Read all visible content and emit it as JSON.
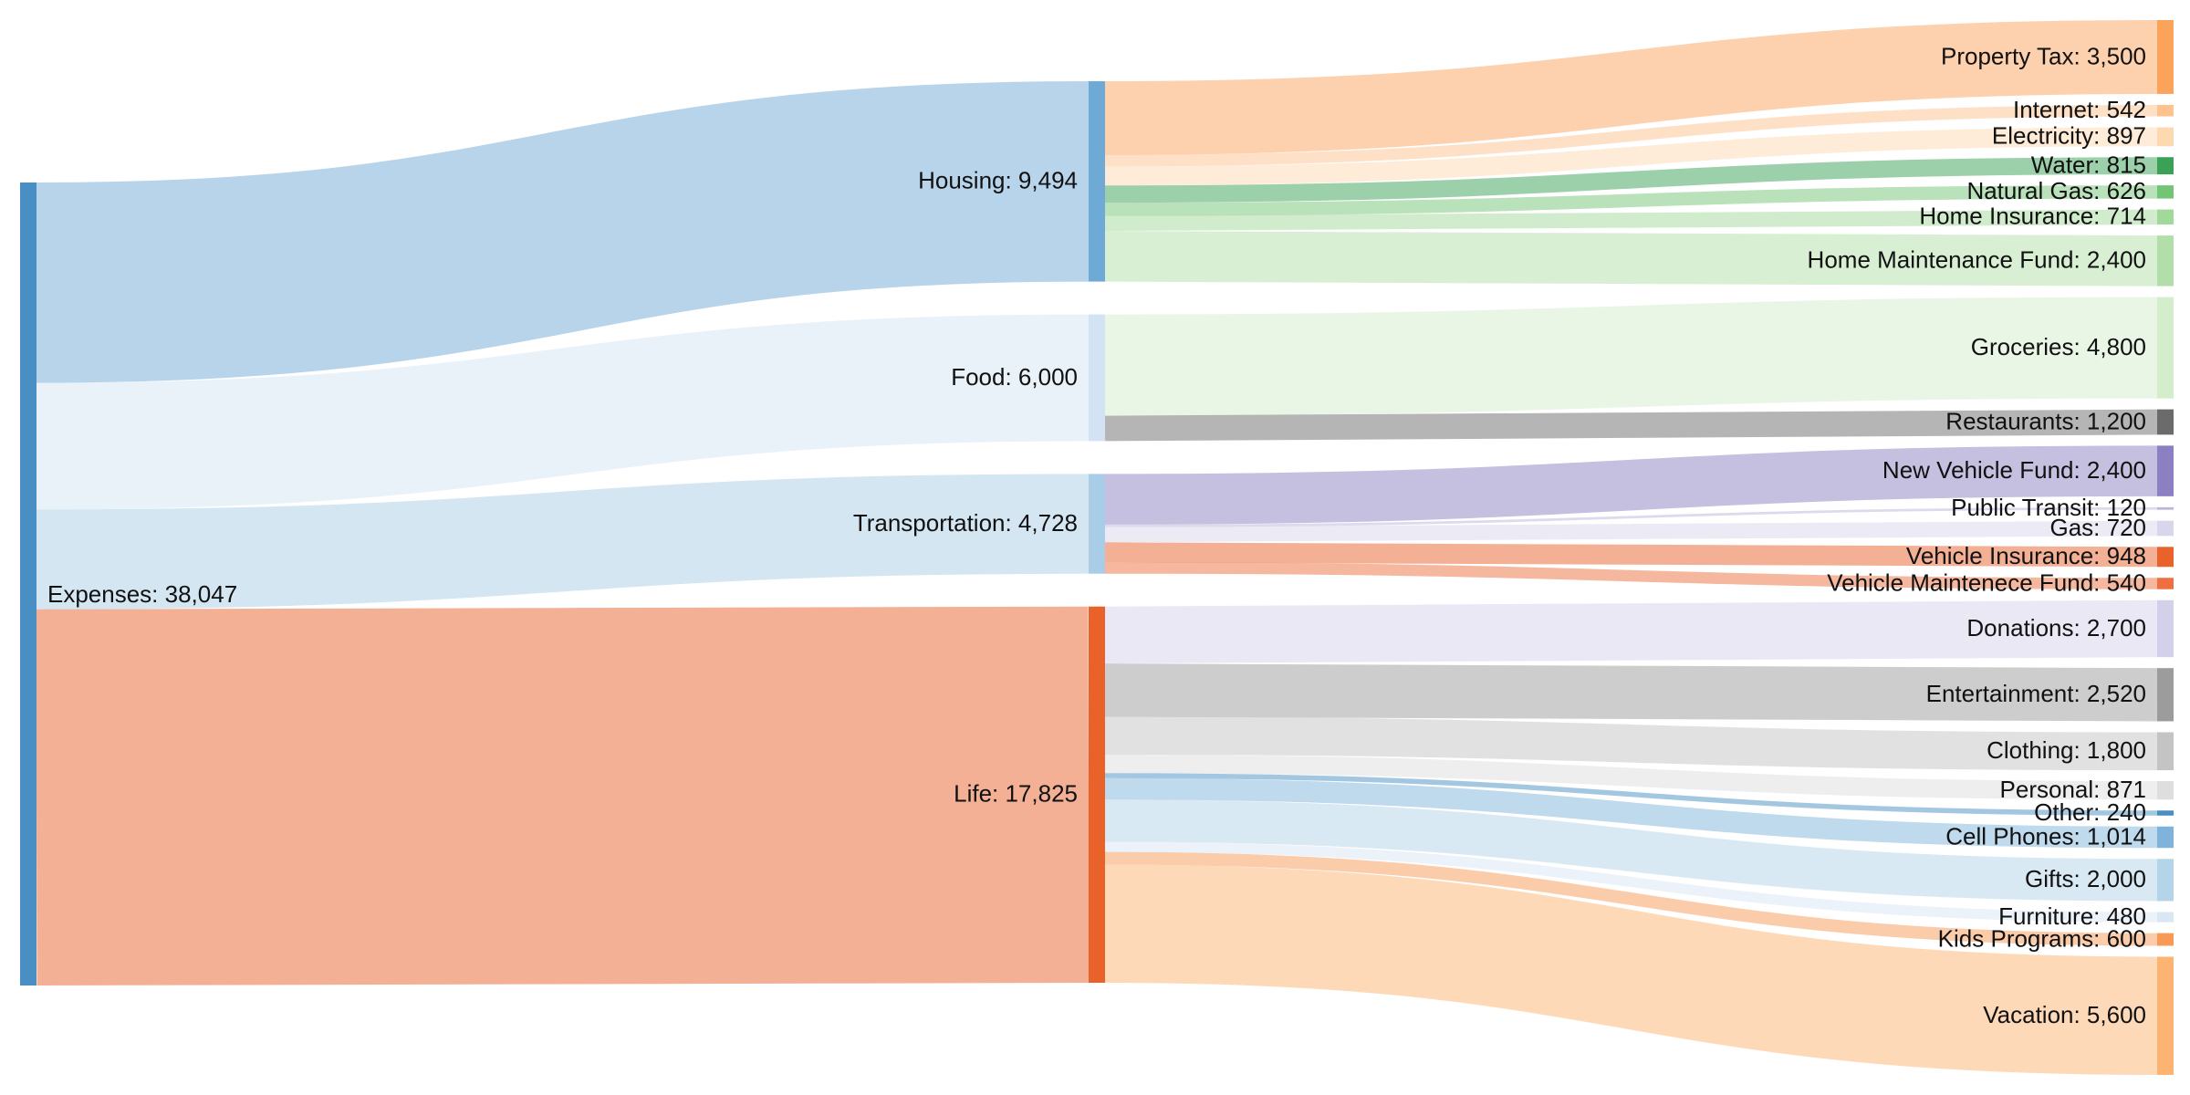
{
  "chart_data": {
    "type": "sankey",
    "title": "",
    "nodes": [
      {
        "id": "expenses",
        "label": "Expenses: 38,047",
        "name": "Expenses",
        "value": 38047,
        "color": "#4a8fc3"
      },
      {
        "id": "housing",
        "label": "Housing: 9,494",
        "name": "Housing",
        "value": 9494,
        "color": "#6fa9d6"
      },
      {
        "id": "food",
        "label": "Food: 6,000",
        "name": "Food",
        "value": 6000,
        "color": "#d3e3f3"
      },
      {
        "id": "transportation",
        "label": "Transportation: 4,728",
        "name": "Transportation",
        "value": 4728,
        "color": "#a9cde6"
      },
      {
        "id": "life",
        "label": "Life: 17,825",
        "name": "Life",
        "value": 17825,
        "color": "#e8622a"
      },
      {
        "id": "property-tax",
        "label": "Property Tax: 3,500",
        "name": "Property Tax",
        "value": 3500,
        "color": "#fba35b"
      },
      {
        "id": "internet",
        "label": "Internet: 542",
        "name": "Internet",
        "value": 542,
        "color": "#fdc28e"
      },
      {
        "id": "electricity",
        "label": "Electricity: 897",
        "name": "Electricity",
        "value": 897,
        "color": "#fdd9b1"
      },
      {
        "id": "water",
        "label": "Water: 815",
        "name": "Water",
        "value": 815,
        "color": "#3aa156"
      },
      {
        "id": "natural-gas",
        "label": "Natural Gas: 626",
        "name": "Natural Gas",
        "value": 626,
        "color": "#74c476"
      },
      {
        "id": "home-insurance",
        "label": "Home Insurance: 714",
        "name": "Home Insurance",
        "value": 714,
        "color": "#a1d99b"
      },
      {
        "id": "home-maintenance-fund",
        "label": "Home Maintenance Fund: 2,400",
        "name": "Home Maintenance Fund",
        "value": 2400,
        "color": "#b2dfa9"
      },
      {
        "id": "groceries",
        "label": "Groceries: 4,800",
        "name": "Groceries",
        "value": 4800,
        "color": "#d4eecb"
      },
      {
        "id": "restaurants",
        "label": "Restaurants: 1,200",
        "name": "Restaurants",
        "value": 1200,
        "color": "#6b6b6b"
      },
      {
        "id": "new-vehicle-fund",
        "label": "New Vehicle Fund: 2,400",
        "name": "New Vehicle Fund",
        "value": 2400,
        "color": "#8c80c2"
      },
      {
        "id": "public-transit",
        "label": "Public Transit: 120",
        "name": "Public Transit",
        "value": 120,
        "color": "#b9b7dc"
      },
      {
        "id": "gas",
        "label": "Gas: 720",
        "name": "Gas",
        "value": 720,
        "color": "#d8d6ec"
      },
      {
        "id": "vehicle-insurance",
        "label": "Vehicle Insurance: 948",
        "name": "Vehicle Insurance",
        "value": 948,
        "color": "#e8622a"
      },
      {
        "id": "vehicle-maintenance-fund",
        "label": "Vehicle Maintenece Fund: 540",
        "name": "Vehicle Maintenece Fund",
        "value": 540,
        "color": "#ee7040"
      },
      {
        "id": "donations",
        "label": "Donations: 2,700",
        "name": "Donations",
        "value": 2700,
        "color": "#d3d1ea"
      },
      {
        "id": "entertainment",
        "label": "Entertainment: 2,520",
        "name": "Entertainment",
        "value": 2520,
        "color": "#9c9c9c"
      },
      {
        "id": "clothing",
        "label": "Clothing: 1,800",
        "name": "Clothing",
        "value": 1800,
        "color": "#c4c4c4"
      },
      {
        "id": "personal",
        "label": "Personal: 871",
        "name": "Personal",
        "value": 871,
        "color": "#dedede"
      },
      {
        "id": "other",
        "label": "Other: 240",
        "name": "Other",
        "value": 240,
        "color": "#4a8fc3"
      },
      {
        "id": "cell-phones",
        "label": "Cell Phones: 1,014",
        "name": "Cell Phones",
        "value": 1014,
        "color": "#7fb3dc"
      },
      {
        "id": "gifts",
        "label": "Gifts: 2,000",
        "name": "Gifts",
        "value": 2000,
        "color": "#b4d4ea"
      },
      {
        "id": "furniture",
        "label": "Furniture: 480",
        "name": "Furniture",
        "value": 480,
        "color": "#d9e6f4"
      },
      {
        "id": "kids-programs",
        "label": "Kids Programs: 600",
        "name": "Kids Programs",
        "value": 600,
        "color": "#f89a55"
      },
      {
        "id": "vacation",
        "label": "Vacation: 5,600",
        "name": "Vacation",
        "value": 5600,
        "color": "#fdb472"
      }
    ],
    "links": [
      {
        "source": "expenses",
        "target": "housing",
        "value": 9494
      },
      {
        "source": "expenses",
        "target": "food",
        "value": 6000
      },
      {
        "source": "expenses",
        "target": "transportation",
        "value": 4728
      },
      {
        "source": "expenses",
        "target": "life",
        "value": 17825
      },
      {
        "source": "housing",
        "target": "property-tax",
        "value": 3500
      },
      {
        "source": "housing",
        "target": "internet",
        "value": 542
      },
      {
        "source": "housing",
        "target": "electricity",
        "value": 897
      },
      {
        "source": "housing",
        "target": "water",
        "value": 815
      },
      {
        "source": "housing",
        "target": "natural-gas",
        "value": 626
      },
      {
        "source": "housing",
        "target": "home-insurance",
        "value": 714
      },
      {
        "source": "housing",
        "target": "home-maintenance-fund",
        "value": 2400
      },
      {
        "source": "food",
        "target": "groceries",
        "value": 4800
      },
      {
        "source": "food",
        "target": "restaurants",
        "value": 1200
      },
      {
        "source": "transportation",
        "target": "new-vehicle-fund",
        "value": 2400
      },
      {
        "source": "transportation",
        "target": "public-transit",
        "value": 120
      },
      {
        "source": "transportation",
        "target": "gas",
        "value": 720
      },
      {
        "source": "transportation",
        "target": "vehicle-insurance",
        "value": 948
      },
      {
        "source": "transportation",
        "target": "vehicle-maintenance-fund",
        "value": 540
      },
      {
        "source": "life",
        "target": "donations",
        "value": 2700
      },
      {
        "source": "life",
        "target": "entertainment",
        "value": 2520
      },
      {
        "source": "life",
        "target": "clothing",
        "value": 1800
      },
      {
        "source": "life",
        "target": "personal",
        "value": 871
      },
      {
        "source": "life",
        "target": "other",
        "value": 240
      },
      {
        "source": "life",
        "target": "cell-phones",
        "value": 1014
      },
      {
        "source": "life",
        "target": "gifts",
        "value": 2000
      },
      {
        "source": "life",
        "target": "furniture",
        "value": 480
      },
      {
        "source": "life",
        "target": "kids-programs",
        "value": 600
      },
      {
        "source": "life",
        "target": "vacation",
        "value": 5600
      }
    ]
  }
}
